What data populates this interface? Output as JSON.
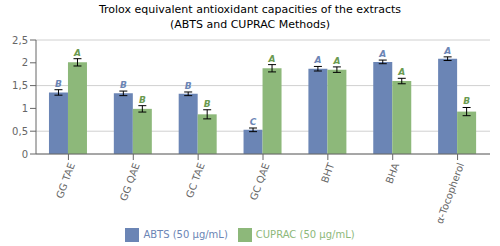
{
  "chart_data": {
    "type": "bar",
    "title": "Trolox equivalent antioxidant capacities of the extracts",
    "subtitle": "(ABTS and CUPRAC Methods)",
    "categories": [
      "GG TAE",
      "GG QAE",
      "GC TAE",
      "GC QAE",
      "BHT",
      "BHA",
      "α-Tocopherol"
    ],
    "series": [
      {
        "name": "ABTS (50 μg/mL)",
        "color": "#6b85b5",
        "values": [
          1.35,
          1.33,
          1.32,
          0.53,
          1.87,
          2.02,
          2.09
        ],
        "errors": [
          0.06,
          0.05,
          0.04,
          0.04,
          0.05,
          0.04,
          0.04
        ],
        "annotations": [
          "B",
          "B",
          "B",
          "C",
          "A",
          "A",
          "A"
        ],
        "annotation_color": "#6b85b5"
      },
      {
        "name": "CUPRAC (50 μg/mL)",
        "color": "#8db87a",
        "values": [
          2.01,
          0.99,
          0.87,
          1.88,
          1.85,
          1.6,
          0.93
        ],
        "errors": [
          0.08,
          0.07,
          0.1,
          0.08,
          0.06,
          0.06,
          0.09
        ],
        "annotations": [
          "A",
          "B",
          "B",
          "A",
          "A",
          "A",
          "B"
        ],
        "annotation_color": "#6a9a50"
      }
    ],
    "ylim": [
      0,
      2.5
    ],
    "yticks": [
      0,
      {
        "value": 0.5,
        "label": "0,5"
      },
      1,
      {
        "value": 1.5,
        "label": "1,5"
      },
      2,
      {
        "value": 2.5,
        "label": "2,5"
      }
    ],
    "grid": true,
    "legend": "bottom"
  }
}
